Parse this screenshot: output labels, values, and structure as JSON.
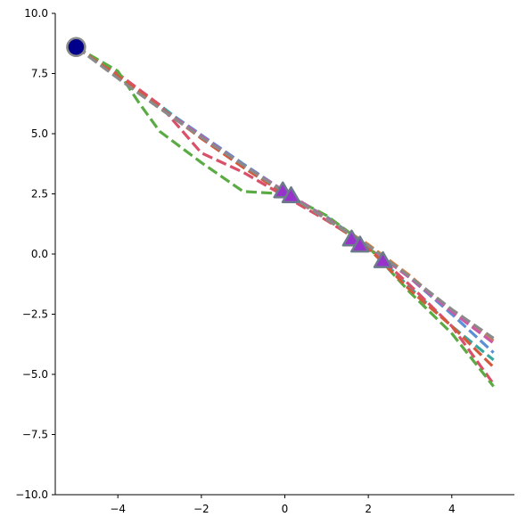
{
  "chart_data": {
    "type": "line",
    "title": "",
    "xlabel": "",
    "ylabel": "",
    "xlim": [
      -5.5,
      5.5
    ],
    "ylim": [
      -10,
      10
    ],
    "grid": false,
    "legend": "none",
    "x_ticks": [
      -4,
      -2,
      0,
      2,
      4
    ],
    "y_ticks": [
      10.0,
      7.5,
      5.0,
      2.5,
      0.0,
      -2.5,
      -5.0,
      -7.5,
      -10.0
    ],
    "x_tick_labels": [
      "−4",
      "−2",
      "0",
      "2",
      "4"
    ],
    "y_tick_labels": [
      "10.0",
      "7.5",
      "5.0",
      "2.5",
      "0.0",
      "−2.5",
      "−5.0",
      "−7.5",
      "−10.0"
    ],
    "series": [
      {
        "color": "#e0813a",
        "values": [
          [
            -5,
            8.6
          ],
          [
            -4,
            7.35
          ],
          [
            -3,
            6.1
          ],
          [
            -2,
            4.9
          ],
          [
            -1,
            3.7
          ],
          [
            0,
            2.6
          ],
          [
            1,
            1.5
          ],
          [
            2,
            0.4
          ],
          [
            3,
            -0.9
          ],
          [
            4,
            -2.4
          ],
          [
            5,
            -3.6
          ]
        ]
      },
      {
        "color": "#5b8fd6",
        "values": [
          [
            -5,
            8.6
          ],
          [
            -4,
            7.4
          ],
          [
            -3,
            6.15
          ],
          [
            -2,
            4.95
          ],
          [
            -1,
            3.75
          ],
          [
            0,
            2.6
          ],
          [
            1,
            1.5
          ],
          [
            2,
            0.35
          ],
          [
            3,
            -1.0
          ],
          [
            4,
            -2.5
          ],
          [
            5,
            -4.1
          ]
        ]
      },
      {
        "color": "#3aa6a0",
        "values": [
          [
            -5,
            8.6
          ],
          [
            -4,
            7.35
          ],
          [
            -3,
            6.2
          ],
          [
            -2,
            4.85
          ],
          [
            -1,
            3.65
          ],
          [
            0,
            2.5
          ],
          [
            1,
            1.55
          ],
          [
            2,
            0.3
          ],
          [
            3,
            -1.4
          ],
          [
            4,
            -3.0
          ],
          [
            5,
            -4.4
          ]
        ]
      },
      {
        "color": "#d9506a",
        "values": [
          [
            -5,
            8.6
          ],
          [
            -4,
            7.5
          ],
          [
            -3,
            6.2
          ],
          [
            -2,
            4.2
          ],
          [
            -1,
            3.4
          ],
          [
            0,
            2.4
          ],
          [
            1,
            1.4
          ],
          [
            2,
            0.3
          ],
          [
            3,
            -1.3
          ],
          [
            4,
            -3.0
          ],
          [
            5,
            -5.4
          ]
        ]
      },
      {
        "color": "#5bab45",
        "values": [
          [
            -5,
            8.6
          ],
          [
            -4,
            7.6
          ],
          [
            -3.5,
            6.3
          ],
          [
            -3,
            5.1
          ],
          [
            -2,
            3.8
          ],
          [
            -1,
            2.6
          ],
          [
            0,
            2.5
          ],
          [
            1,
            1.6
          ],
          [
            2,
            0.3
          ],
          [
            3,
            -1.6
          ],
          [
            4,
            -3.3
          ],
          [
            5,
            -5.5
          ]
        ]
      },
      {
        "color": "#c85aa8",
        "values": [
          [
            -5,
            8.6
          ],
          [
            -4,
            7.35
          ],
          [
            -3,
            6.1
          ],
          [
            -2,
            4.9
          ],
          [
            -1,
            3.7
          ],
          [
            0,
            2.6
          ],
          [
            1,
            1.5
          ],
          [
            2,
            0.3
          ],
          [
            3,
            -1.0
          ],
          [
            4,
            -2.4
          ],
          [
            5,
            -3.7
          ]
        ]
      },
      {
        "color": "#d35a3c",
        "values": [
          [
            -5,
            8.6
          ],
          [
            -4,
            7.4
          ],
          [
            -3,
            6.1
          ],
          [
            -2,
            4.8
          ],
          [
            -1,
            3.6
          ],
          [
            0,
            2.5
          ],
          [
            1,
            1.45
          ],
          [
            2,
            0.25
          ],
          [
            3,
            -1.5
          ],
          [
            4,
            -3.0
          ],
          [
            5,
            -4.7
          ]
        ]
      },
      {
        "color": "#8a8a8a",
        "values": [
          [
            -5,
            8.6
          ],
          [
            -4,
            7.3
          ],
          [
            -3,
            6.05
          ],
          [
            -2,
            4.85
          ],
          [
            -1,
            3.7
          ],
          [
            0,
            2.55
          ],
          [
            1,
            1.45
          ],
          [
            2,
            0.35
          ],
          [
            3,
            -0.95
          ],
          [
            4,
            -2.3
          ],
          [
            5,
            -3.5
          ]
        ]
      }
    ],
    "start_marker": {
      "x": -5,
      "y": 8.6,
      "color": "#00008b"
    },
    "triangle_markers": [
      {
        "x": -0.05,
        "y": 2.6
      },
      {
        "x": 0.15,
        "y": 2.4
      },
      {
        "x": 1.6,
        "y": 0.6
      },
      {
        "x": 1.8,
        "y": 0.35
      },
      {
        "x": 2.35,
        "y": -0.3
      }
    ],
    "triangle_color": "#9932cc"
  }
}
